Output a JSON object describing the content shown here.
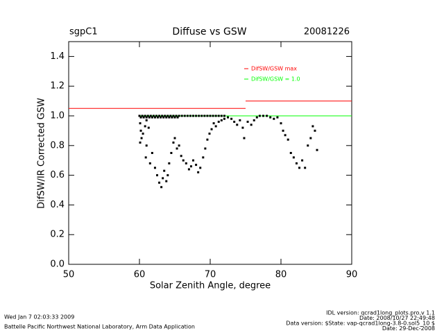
{
  "chart_data": {
    "type": "scatter",
    "title": "Diffuse vs GSW",
    "station": "sgpC1",
    "date": "20081226",
    "xlabel": "Solar Zenith Angle, degree",
    "ylabel": "DifSW/IR Corrected GSW",
    "xlim": [
      50,
      90
    ],
    "ylim": [
      0,
      1.5
    ],
    "xticks": [
      50,
      60,
      70,
      80,
      90
    ],
    "yticks": [
      {
        "value": 0,
        "label": "0.0"
      },
      {
        "value": 0.2,
        "label": "0.2"
      },
      {
        "value": 0.4,
        "label": "0.4"
      },
      {
        "value": 0.6,
        "label": "0.6"
      },
      {
        "value": 0.8,
        "label": "0.8"
      },
      {
        "value": 1.0,
        "label": "1.0"
      },
      {
        "value": 1.2,
        "label": "1.2"
      },
      {
        "value": 1.4,
        "label": "1.4"
      }
    ],
    "color": "#000000",
    "x": [
      60.0,
      60.4,
      60.8,
      61.2,
      61.6,
      62.0,
      62.4,
      62.8,
      63.2,
      63.6,
      64.0,
      64.4,
      64.8,
      65.2,
      65.6,
      66.0,
      66.4,
      66.8,
      67.2,
      67.6,
      68.0,
      68.4,
      68.8,
      69.2,
      69.6,
      70.0,
      70.4,
      70.8,
      71.2,
      71.6,
      72.0,
      60.2,
      60.6,
      61.0,
      61.4,
      61.8,
      62.2,
      62.6,
      63.0,
      63.4,
      63.8,
      64.2,
      64.6,
      65.0,
      65.4,
      60.1,
      60.2,
      60.3,
      60.1,
      60.5,
      60.8,
      61.0,
      61.3,
      61.0,
      60.9,
      61.5,
      61.8,
      62.2,
      62.5,
      62.8,
      63.1,
      63.3,
      63.5,
      63.8,
      64.0,
      64.2,
      64.5,
      64.8,
      65.0,
      65.3,
      65.6,
      65.9,
      66.2,
      66.6,
      67.0,
      67.3,
      67.6,
      68.0,
      68.3,
      68.6,
      69.0,
      69.3,
      69.6,
      69.9,
      70.2,
      70.5,
      70.8,
      71.2,
      71.6,
      72.0,
      72.5,
      73.0,
      73.4,
      73.8,
      74.2,
      74.6,
      74.8,
      75.3,
      75.8,
      76.2,
      76.6,
      77.0,
      77.5,
      78.0,
      78.5,
      79.0,
      79.5,
      80.0,
      80.3,
      80.6,
      81.0,
      81.4,
      81.8,
      82.2,
      82.6,
      83.0,
      83.4,
      83.8,
      84.2,
      84.5,
      84.8,
      85.1
    ],
    "y": [
      1.0,
      1.0,
      1.0,
      1.0,
      1.0,
      1.0,
      1.0,
      1.0,
      1.0,
      1.0,
      1.0,
      1.0,
      1.0,
      1.0,
      1.0,
      1.0,
      1.0,
      1.0,
      1.0,
      1.0,
      1.0,
      1.0,
      1.0,
      1.0,
      1.0,
      1.0,
      1.0,
      1.0,
      1.0,
      1.0,
      1.0,
      0.99,
      0.99,
      0.99,
      0.99,
      0.99,
      0.99,
      0.99,
      0.99,
      0.99,
      0.99,
      0.99,
      0.99,
      0.99,
      0.99,
      0.95,
      0.9,
      0.85,
      0.82,
      0.88,
      0.93,
      0.97,
      0.92,
      0.8,
      0.72,
      0.68,
      0.75,
      0.65,
      0.6,
      0.55,
      0.52,
      0.58,
      0.63,
      0.56,
      0.6,
      0.68,
      0.75,
      0.82,
      0.85,
      0.78,
      0.8,
      0.73,
      0.7,
      0.68,
      0.64,
      0.66,
      0.7,
      0.67,
      0.62,
      0.65,
      0.72,
      0.78,
      0.84,
      0.88,
      0.91,
      0.95,
      0.93,
      0.96,
      0.97,
      0.98,
      0.99,
      0.98,
      0.96,
      0.94,
      0.97,
      0.92,
      0.85,
      0.96,
      0.94,
      0.97,
      0.99,
      1.0,
      1.0,
      1.0,
      0.99,
      0.98,
      0.99,
      0.95,
      0.9,
      0.87,
      0.84,
      0.75,
      0.72,
      0.68,
      0.65,
      0.7,
      0.65,
      0.8,
      0.85,
      0.93,
      0.9,
      0.77
    ],
    "lines": [
      {
        "name": "DifSW/GSW max",
        "color": "#ff0000",
        "segments": [
          {
            "x": [
              50,
              75
            ],
            "y": [
              1.05,
              1.05
            ]
          },
          {
            "x": [
              75,
              90
            ],
            "y": [
              1.1,
              1.1
            ]
          }
        ]
      },
      {
        "name": "DifSW/GSW = 1.0",
        "color": "#00ff00",
        "segments": [
          {
            "x": [
              60,
              90
            ],
            "y": [
              1.0,
              1.0
            ]
          }
        ]
      }
    ],
    "footer_left": [
      "Wed Jan  7 02:03:33 2009",
      "Battelle Pacific Northwest National Laboratory, Arm Data Application"
    ],
    "footer_right": [
      "IDL version: qcrad1long_plots.pro,v 1.1",
      "Date: 2008/10/27 22:49:48",
      "Data version: $State: vap-qcrad1long-3.8-0.sol5_10 $",
      "Date: 29-Dec-2008"
    ]
  }
}
